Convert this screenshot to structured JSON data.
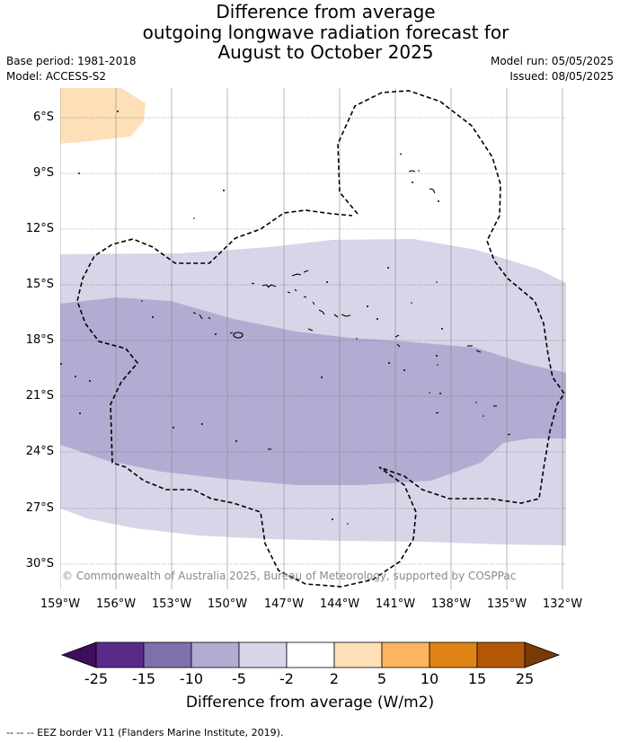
{
  "title": {
    "line1": "Difference from average",
    "line2": "outgoing longwave radiation forecast for",
    "line3": "August to October 2025"
  },
  "meta": {
    "base_period": "Base period: 1981-2018",
    "model": "Model: ACCESS-S2",
    "model_run": "Model run: 05/05/2025",
    "issued": "Issued: 08/05/2025"
  },
  "map": {
    "lat_ticks": [
      "6°S",
      "9°S",
      "12°S",
      "15°S",
      "18°S",
      "21°S",
      "24°S",
      "27°S",
      "30°S"
    ],
    "lon_ticks": [
      "159°W",
      "156°W",
      "153°W",
      "150°W",
      "147°W",
      "144°W",
      "141°W",
      "138°W",
      "135°W",
      "132°W"
    ],
    "copyright": "© Commonwealth of Australia 2025, Bureau of Meteorology, supported by COSPPac",
    "category_colors": {
      "minus_5_to_minus_2": "#d6d6e8",
      "minus_10_to_minus_5": "#b1acd2",
      "2_to_5": "#fde0b7"
    }
  },
  "colorbar": {
    "labels": [
      "-25",
      "-15",
      "-10",
      "-5",
      "-2",
      "2",
      "5",
      "10",
      "15",
      "25"
    ],
    "colors": [
      "#3b0f5c",
      "#5a2a8a",
      "#7e71ab",
      "#b1acd2",
      "#d6d6e8",
      "#ffffff",
      "#fde0b7",
      "#fdb45f",
      "#e08316",
      "#b35806",
      "#7a3a06"
    ],
    "title": "Difference from average (W/m2)"
  },
  "footer": "--  --  -- EEZ border V11 (Flanders Marine Institute, 2019)."
}
